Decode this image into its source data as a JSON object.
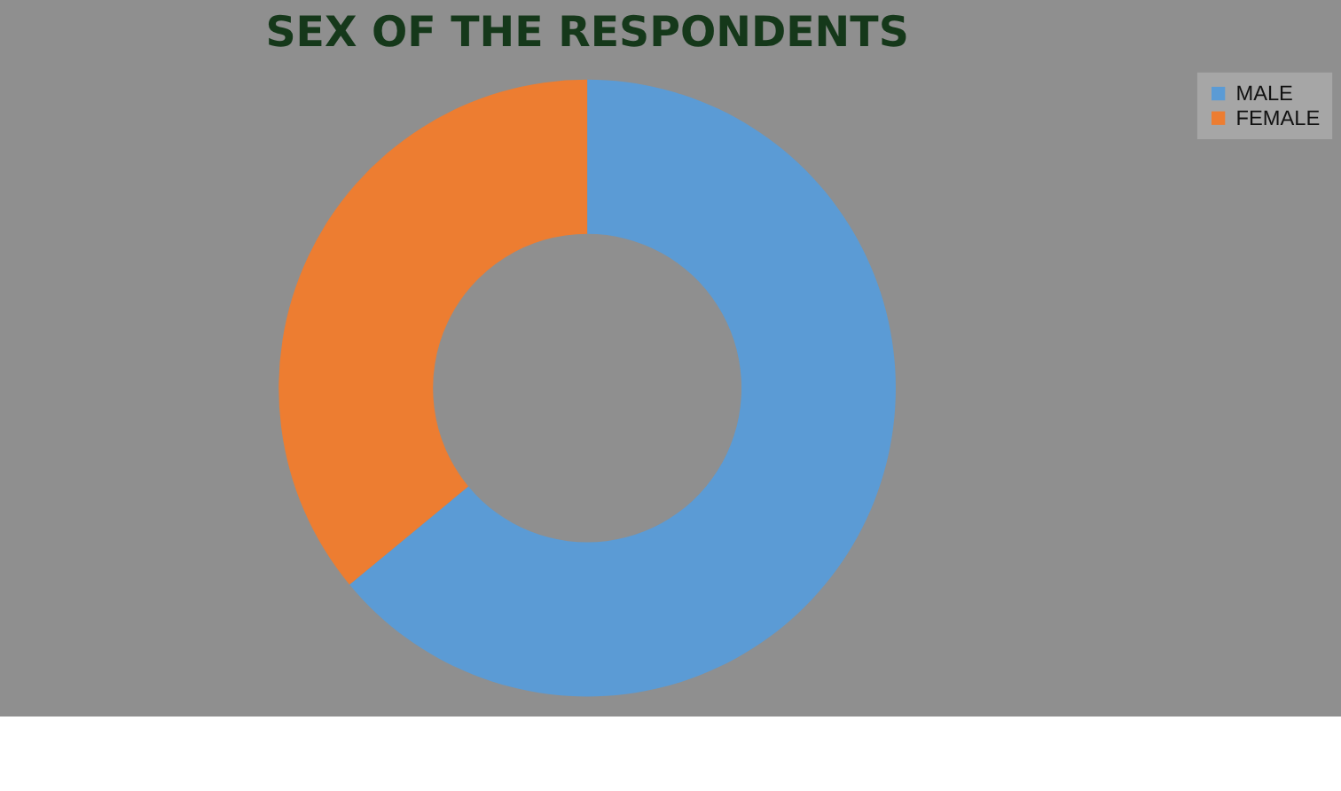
{
  "chart_data": {
    "type": "donut",
    "title": "SEX OF THE RESPONDENTS",
    "categories": [
      "MALE",
      "FEMALE"
    ],
    "values": [
      64,
      36
    ],
    "colors": [
      "#5b9bd5",
      "#ed7d31"
    ],
    "legend": "right"
  }
}
